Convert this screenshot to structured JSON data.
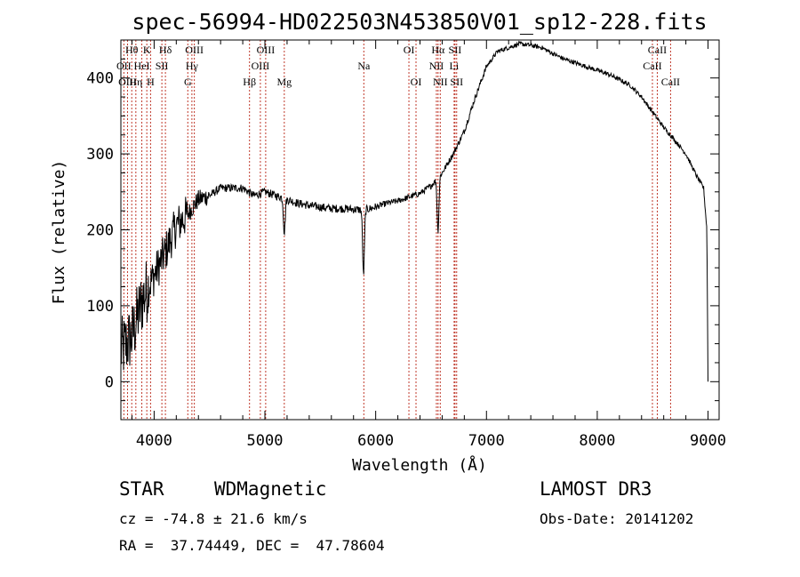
{
  "chart_data": {
    "type": "line",
    "title": "spec-56994-HD022503N453850V01_sp12-228.fits",
    "xlabel": "Wavelength (Å)",
    "ylabel": "Flux (relative)",
    "xlim": [
      3700,
      9100
    ],
    "ylim": [
      -50,
      450
    ],
    "xticks": [
      4000,
      5000,
      6000,
      7000,
      8000,
      9000
    ],
    "yticks": [
      0,
      100,
      200,
      300,
      400
    ],
    "spectrum_anchors": [
      {
        "x": 3700,
        "y": 40
      },
      {
        "x": 3800,
        "y": 60
      },
      {
        "x": 3900,
        "y": 110
      },
      {
        "x": 4000,
        "y": 140
      },
      {
        "x": 4100,
        "y": 170
      },
      {
        "x": 4200,
        "y": 205
      },
      {
        "x": 4300,
        "y": 220
      },
      {
        "x": 4400,
        "y": 240
      },
      {
        "x": 4500,
        "y": 245
      },
      {
        "x": 4600,
        "y": 255
      },
      {
        "x": 4700,
        "y": 255
      },
      {
        "x": 4800,
        "y": 255
      },
      {
        "x": 4900,
        "y": 245
      },
      {
        "x": 5000,
        "y": 250
      },
      {
        "x": 5100,
        "y": 245
      },
      {
        "x": 5200,
        "y": 240
      },
      {
        "x": 5300,
        "y": 235
      },
      {
        "x": 5400,
        "y": 232
      },
      {
        "x": 5500,
        "y": 230
      },
      {
        "x": 5600,
        "y": 228
      },
      {
        "x": 5700,
        "y": 228
      },
      {
        "x": 5800,
        "y": 227
      },
      {
        "x": 5900,
        "y": 226
      },
      {
        "x": 6000,
        "y": 230
      },
      {
        "x": 6100,
        "y": 235
      },
      {
        "x": 6200,
        "y": 238
      },
      {
        "x": 6300,
        "y": 243
      },
      {
        "x": 6400,
        "y": 248
      },
      {
        "x": 6500,
        "y": 258
      },
      {
        "x": 6600,
        "y": 275
      },
      {
        "x": 6700,
        "y": 300
      },
      {
        "x": 6800,
        "y": 330
      },
      {
        "x": 6900,
        "y": 375
      },
      {
        "x": 7000,
        "y": 415
      },
      {
        "x": 7100,
        "y": 435
      },
      {
        "x": 7200,
        "y": 440
      },
      {
        "x": 7300,
        "y": 445
      },
      {
        "x": 7400,
        "y": 443
      },
      {
        "x": 7500,
        "y": 440
      },
      {
        "x": 7600,
        "y": 432
      },
      {
        "x": 7700,
        "y": 425
      },
      {
        "x": 7800,
        "y": 420
      },
      {
        "x": 7900,
        "y": 415
      },
      {
        "x": 8000,
        "y": 410
      },
      {
        "x": 8100,
        "y": 405
      },
      {
        "x": 8200,
        "y": 398
      },
      {
        "x": 8300,
        "y": 390
      },
      {
        "x": 8400,
        "y": 375
      },
      {
        "x": 8500,
        "y": 355
      },
      {
        "x": 8600,
        "y": 335
      },
      {
        "x": 8700,
        "y": 318
      },
      {
        "x": 8800,
        "y": 300
      },
      {
        "x": 8900,
        "y": 270
      },
      {
        "x": 8960,
        "y": 255
      },
      {
        "x": 8990,
        "y": 200
      },
      {
        "x": 9000,
        "y": 0
      }
    ],
    "absorption_features": [
      {
        "x": 5175,
        "depth": 45
      },
      {
        "x": 5890,
        "depth": 85
      },
      {
        "x": 6563,
        "depth": 70
      }
    ],
    "spectral_lines": [
      {
        "label": "OII",
        "x": 3727,
        "row": 2
      },
      {
        "label": "OIII",
        "x": 3760,
        "row": 3
      },
      {
        "label": "Hθ",
        "x": 3798,
        "row": 1
      },
      {
        "label": "Hη",
        "x": 3835,
        "row": 3
      },
      {
        "label": "HeI",
        "x": 3889,
        "row": 2
      },
      {
        "label": "K",
        "x": 3934,
        "row": 1
      },
      {
        "label": "H",
        "x": 3968,
        "row": 3
      },
      {
        "label": "SII",
        "x": 4070,
        "row": 2
      },
      {
        "label": "Hδ",
        "x": 4102,
        "row": 1
      },
      {
        "label": "G",
        "x": 4304,
        "row": 3
      },
      {
        "label": "Hγ",
        "x": 4341,
        "row": 2
      },
      {
        "label": "OIII",
        "x": 4363,
        "row": 1
      },
      {
        "label": "Hβ",
        "x": 4861,
        "row": 3
      },
      {
        "label": "OIII",
        "x": 4959,
        "row": 2
      },
      {
        "label": "OIII",
        "x": 5007,
        "row": 1
      },
      {
        "label": "Mg",
        "x": 5175,
        "row": 3
      },
      {
        "label": "Na",
        "x": 5893,
        "row": 2
      },
      {
        "label": "OI",
        "x": 6300,
        "row": 1
      },
      {
        "label": "OI",
        "x": 6364,
        "row": 3
      },
      {
        "label": "NII",
        "x": 6548,
        "row": 2
      },
      {
        "label": "Hα",
        "x": 6563,
        "row": 1
      },
      {
        "label": "NII",
        "x": 6583,
        "row": 3
      },
      {
        "label": "Li",
        "x": 6708,
        "row": 2
      },
      {
        "label": "SII",
        "x": 6716,
        "row": 1
      },
      {
        "label": "SII",
        "x": 6731,
        "row": 3
      },
      {
        "label": "CaII",
        "x": 8498,
        "row": 2
      },
      {
        "label": "CaII",
        "x": 8542,
        "row": 1
      },
      {
        "label": "CaII",
        "x": 8662,
        "row": 3
      }
    ]
  },
  "info": {
    "object_class": "STAR",
    "subclass": "WDMagnetic",
    "survey": "LAMOST DR3",
    "redshift_text": "cz = -74.8 ± 21.6 km/s",
    "obs_date_text": "Obs-Date: 20141202",
    "coords_text": "RA =  37.74449, DEC =  47.78604"
  },
  "colors": {
    "line_marker": "#c0392b",
    "spectrum": "#000000",
    "axes": "#000000"
  }
}
